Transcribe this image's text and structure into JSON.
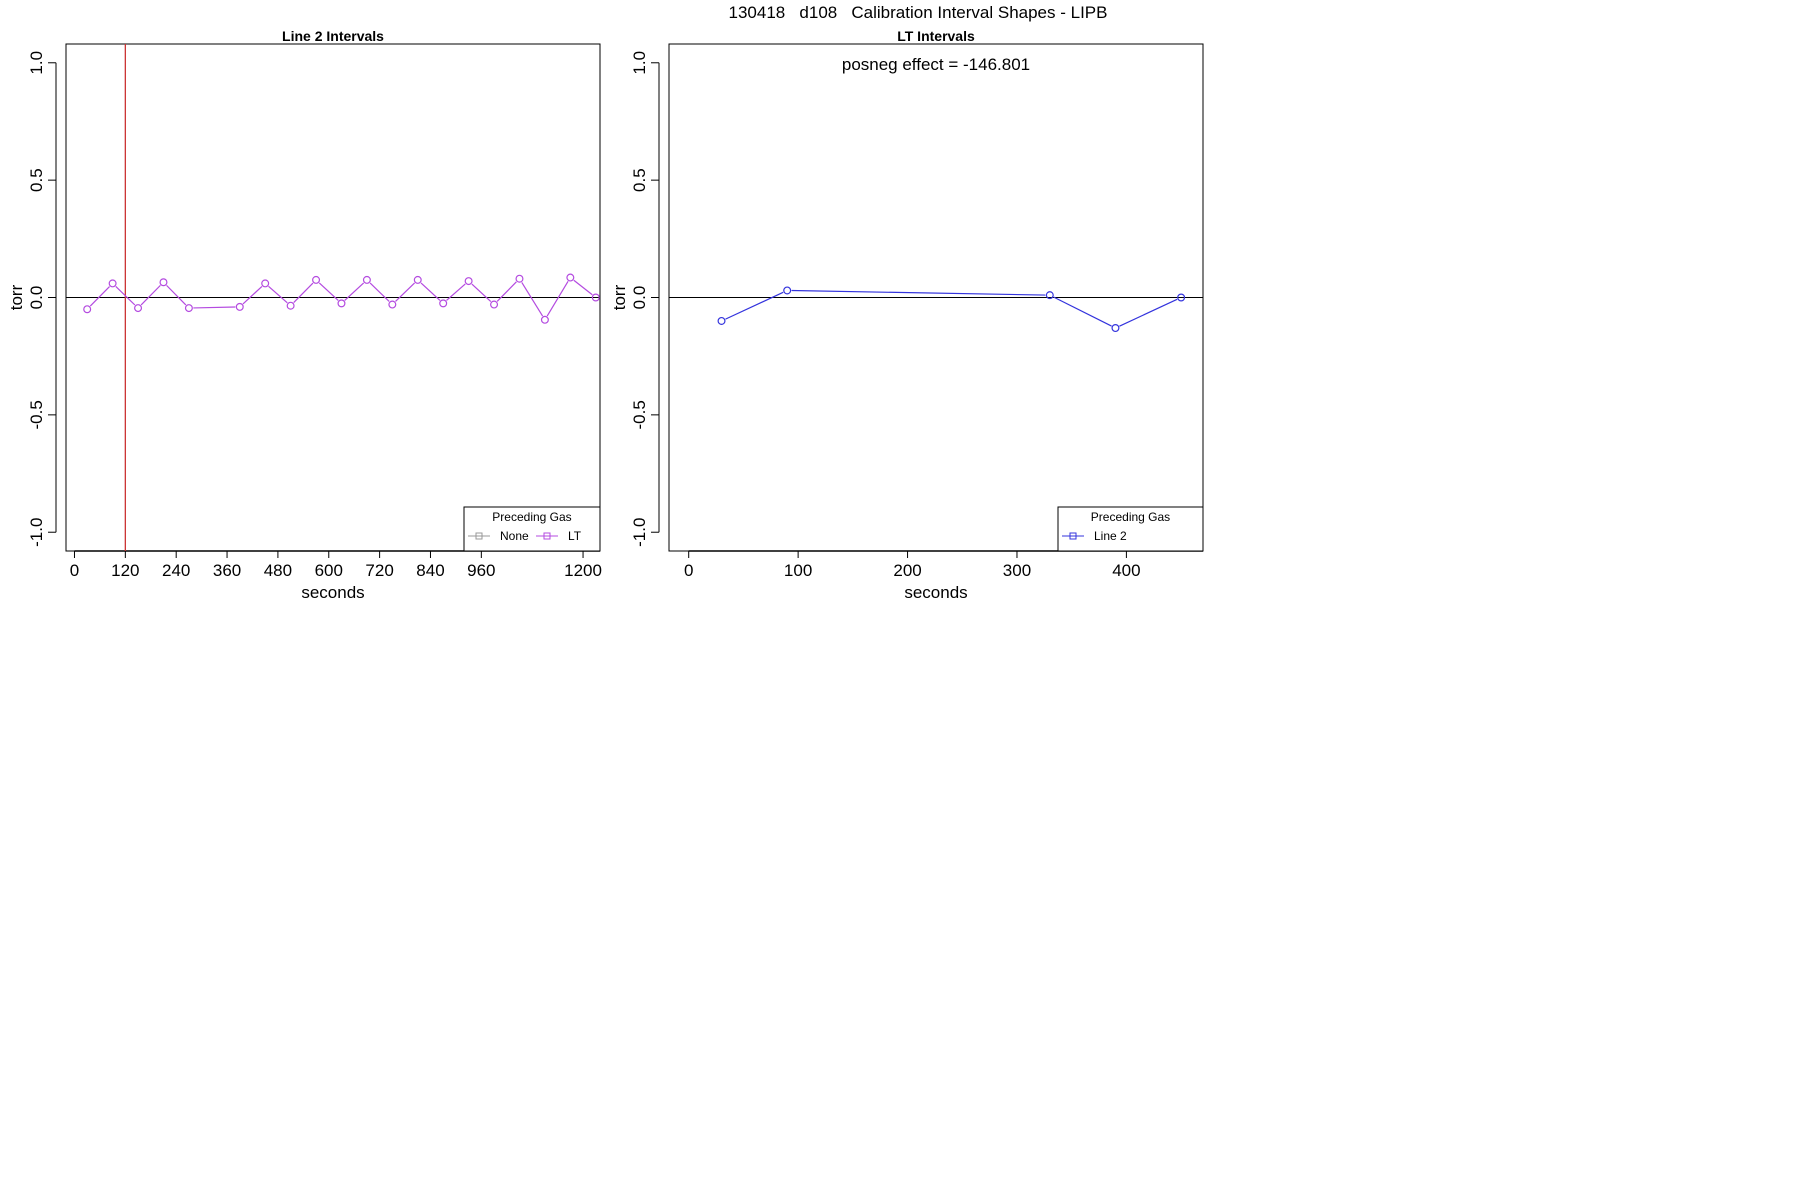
{
  "figure_title": "130418   d108   Calibration Interval Shapes - LIPB",
  "chart_data": [
    {
      "type": "line",
      "title": "Line 2 Intervals",
      "xlabel": "seconds",
      "ylabel": "torr",
      "xlim": [
        -20,
        1240
      ],
      "ylim": [
        -1.08,
        1.08
      ],
      "x_ticks": [
        0,
        120,
        240,
        360,
        480,
        600,
        720,
        840,
        960,
        1200
      ],
      "x_tick_labels": [
        "0",
        "120",
        "240",
        "360",
        "480",
        "600",
        "720",
        "840",
        "960",
        "1200"
      ],
      "y_ticks": [
        -1.0,
        -0.5,
        0.0,
        0.5,
        1.0
      ],
      "y_tick_labels": [
        "-1.0",
        "-0.5",
        "0.0",
        "0.5",
        "1.0"
      ],
      "hlines": [
        {
          "y": 0,
          "color": "#000000"
        }
      ],
      "vlines": [
        {
          "x": 120,
          "color": "#cc3333"
        }
      ],
      "grid": false,
      "annotation": "",
      "legend": {
        "title": "Preceding Gas",
        "position": "bottom-right",
        "entries": [
          {
            "label": "None",
            "color": "#999999"
          },
          {
            "label": "LT",
            "color": "#b44be0"
          }
        ]
      },
      "series": [
        {
          "name": "LT",
          "color": "#b44be0",
          "x": [
            30,
            90,
            150,
            210,
            270,
            390,
            450,
            510,
            570,
            630,
            690,
            750,
            810,
            870,
            930,
            990,
            1050,
            1110,
            1170,
            1230
          ],
          "y": [
            -0.05,
            0.06,
            -0.045,
            0.065,
            -0.045,
            -0.04,
            0.06,
            -0.035,
            0.075,
            -0.025,
            0.075,
            -0.03,
            0.075,
            -0.025,
            0.07,
            -0.03,
            0.08,
            -0.095,
            0.085,
            0.0
          ]
        }
      ]
    },
    {
      "type": "line",
      "title": "LT Intervals",
      "xlabel": "seconds",
      "ylabel": "torr",
      "xlim": [
        -18,
        470
      ],
      "ylim": [
        -1.08,
        1.08
      ],
      "x_ticks": [
        0,
        100,
        200,
        300,
        400
      ],
      "x_tick_labels": [
        "0",
        "100",
        "200",
        "300",
        "400"
      ],
      "y_ticks": [
        -1.0,
        -0.5,
        0.0,
        0.5,
        1.0
      ],
      "y_tick_labels": [
        "-1.0",
        "-0.5",
        "0.0",
        "0.5",
        "1.0"
      ],
      "hlines": [
        {
          "y": 0,
          "color": "#000000"
        }
      ],
      "vlines": [],
      "grid": false,
      "annotation": "posneg effect = -146.801",
      "legend": {
        "title": "Preceding Gas",
        "position": "bottom-right",
        "entries": [
          {
            "label": "Line 2",
            "color": "#3333dd"
          }
        ]
      },
      "series": [
        {
          "name": "Line 2",
          "color": "#3333dd",
          "x": [
            30,
            90,
            330,
            390,
            450
          ],
          "y": [
            -0.1,
            0.03,
            0.01,
            -0.13,
            0.0
          ]
        }
      ]
    }
  ]
}
